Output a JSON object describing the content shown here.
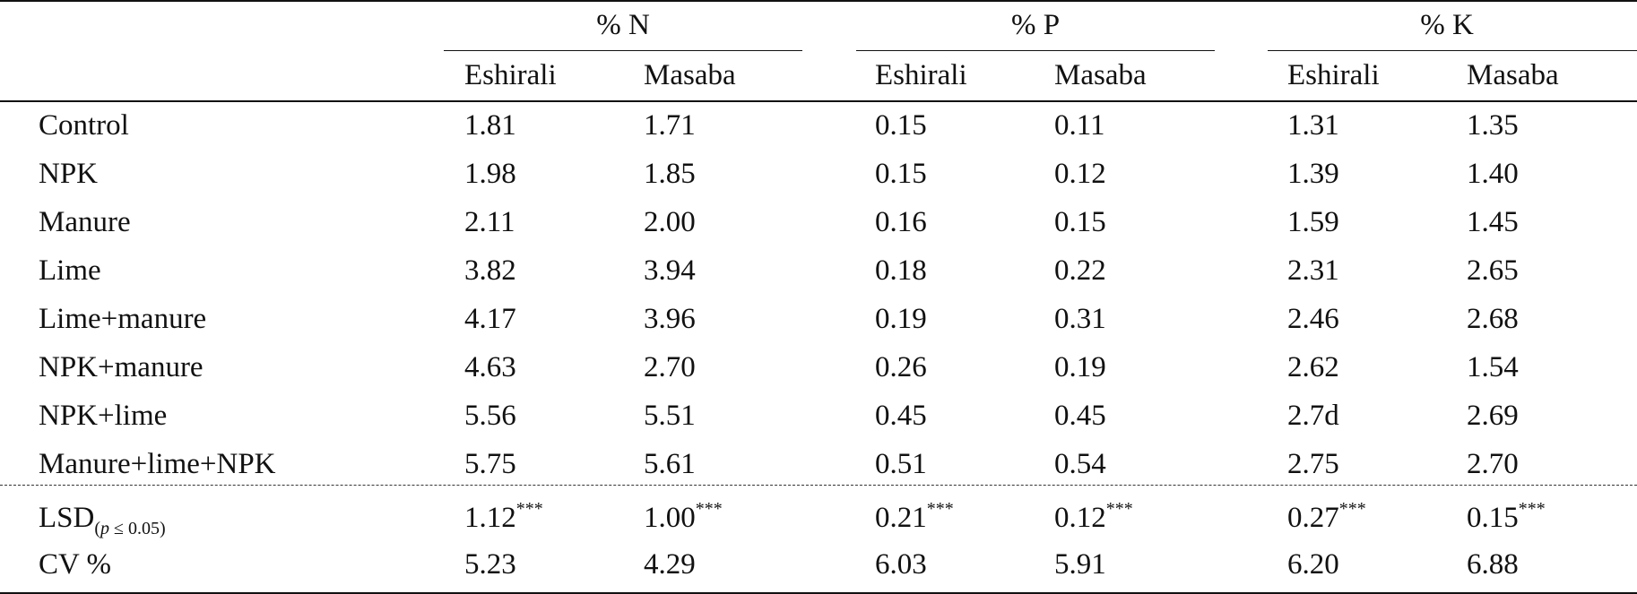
{
  "groups": [
    {
      "label": "% N"
    },
    {
      "label": "% P"
    },
    {
      "label": "% K"
    }
  ],
  "subheaders": [
    "Eshirali",
    "Masaba",
    "Eshirali",
    "Masaba",
    "Eshirali",
    "Masaba"
  ],
  "rows": [
    {
      "label": "Control",
      "values": [
        "1.81",
        "1.71",
        "0.15",
        "0.11",
        "1.31",
        "1.35"
      ]
    },
    {
      "label": "NPK",
      "values": [
        "1.98",
        "1.85",
        "0.15",
        "0.12",
        "1.39",
        "1.40"
      ]
    },
    {
      "label": "Manure",
      "values": [
        "2.11",
        "2.00",
        "0.16",
        "0.15",
        "1.59",
        "1.45"
      ]
    },
    {
      "label": "Lime",
      "values": [
        "3.82",
        "3.94",
        "0.18",
        "0.22",
        "2.31",
        "2.65"
      ]
    },
    {
      "label": "Lime+manure",
      "values": [
        "4.17",
        "3.96",
        "0.19",
        "0.31",
        "2.46",
        "2.68"
      ]
    },
    {
      "label": "NPK+manure",
      "values": [
        "4.63",
        "2.70",
        "0.26",
        "0.19",
        "2.62",
        "1.54"
      ]
    },
    {
      "label": "NPK+lime",
      "values": [
        "5.56",
        "5.51",
        "0.45",
        "0.45",
        "2.7d",
        "2.69"
      ]
    },
    {
      "label": "Manure+lime+NPK",
      "values": [
        "5.75",
        "5.61",
        "0.51",
        "0.54",
        "2.75",
        "2.70"
      ]
    }
  ],
  "lsd": {
    "label": "LSD",
    "condition_p": "p",
    "condition_rest": " ≤ 0.05)",
    "condition_open": "(",
    "values": [
      "1.12",
      "1.00",
      "0.21",
      "0.12",
      "0.27",
      "0.15"
    ],
    "significance": "***"
  },
  "cv": {
    "label": "CV %",
    "values": [
      "5.23",
      "4.29",
      "6.03",
      "5.91",
      "6.20",
      "6.88"
    ]
  }
}
